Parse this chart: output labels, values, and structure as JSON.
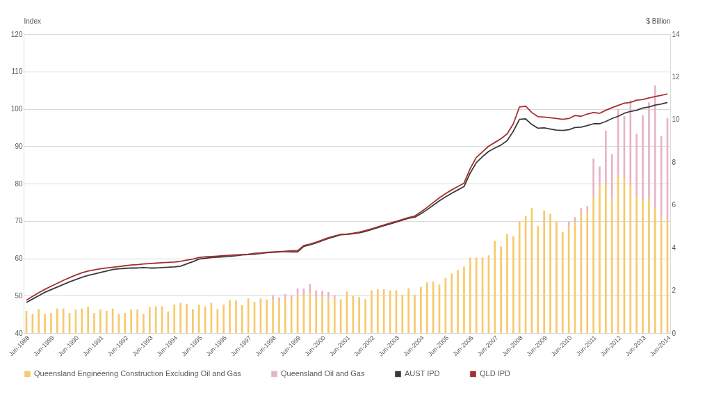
{
  "chart_data": {
    "type": "bar",
    "ylabel": "Index",
    "y2label": "$ Billion",
    "stacked": true,
    "grid": "y",
    "legend": "bottom",
    "ylim": [
      40,
      120
    ],
    "yticks": [
      40,
      50,
      60,
      70,
      80,
      90,
      100,
      110,
      120
    ],
    "y2lim": [
      0,
      14
    ],
    "y2ticks": [
      0,
      2,
      4,
      6,
      8,
      10,
      12,
      14
    ],
    "categories": [
      "Jun-1988",
      null,
      null,
      null,
      "Jun-1989",
      null,
      null,
      null,
      "Jun-1990",
      null,
      null,
      null,
      "Jun-1991",
      null,
      null,
      null,
      "Jun-1992",
      null,
      null,
      null,
      "Jun-1993",
      null,
      null,
      null,
      "Jun-1994",
      null,
      null,
      null,
      "Jun-1995",
      null,
      null,
      null,
      "Jun-1996",
      null,
      null,
      null,
      "Jun-1997",
      null,
      null,
      null,
      "Jun-1998",
      null,
      null,
      null,
      "Jun-1999",
      null,
      null,
      null,
      "Jun-2000",
      null,
      null,
      null,
      "Jun-2001",
      null,
      null,
      null,
      "Jun-2002",
      null,
      null,
      null,
      "Jun-2003",
      null,
      null,
      null,
      "Jun-2004",
      null,
      null,
      null,
      "Jun-2005",
      null,
      null,
      null,
      "Jun-2006",
      null,
      null,
      null,
      "Jun-2007",
      null,
      null,
      null,
      "Jun-2008",
      null,
      null,
      null,
      "Jun-2009",
      null,
      null,
      null,
      "Jun-2010",
      null,
      null,
      null,
      "Jun-2011",
      null,
      null,
      null,
      "Jun-2012",
      null,
      null,
      null,
      "Jun-2013",
      null,
      null,
      null,
      "Jun-2014"
    ],
    "series": [
      {
        "name": "Queensland Engineering Construction Excluding Oil and Gas",
        "axis": "y2",
        "color": "#f7c96b",
        "values": [
          1.04,
          0.89,
          1.12,
          0.89,
          0.94,
          1.15,
          1.15,
          0.94,
          1.1,
          1.15,
          1.22,
          0.94,
          1.1,
          1.04,
          1.15,
          0.89,
          0.94,
          1.1,
          1.1,
          0.89,
          1.22,
          1.25,
          1.25,
          1.01,
          1.33,
          1.41,
          1.36,
          1.12,
          1.33,
          1.25,
          1.41,
          1.12,
          1.33,
          1.54,
          1.52,
          1.31,
          1.62,
          1.46,
          1.62,
          1.57,
          1.55,
          1.5,
          1.6,
          1.6,
          1.8,
          1.75,
          1.85,
          1.7,
          1.7,
          1.65,
          1.6,
          1.58,
          1.95,
          1.74,
          1.69,
          1.58,
          2.0,
          2.05,
          2.05,
          2.0,
          2.0,
          1.79,
          2.1,
          1.79,
          2.16,
          2.37,
          2.42,
          2.27,
          2.58,
          2.79,
          2.95,
          3.11,
          3.53,
          3.53,
          3.53,
          3.64,
          4.32,
          4.06,
          4.64,
          4.53,
          5.22,
          5.48,
          5.85,
          5.01,
          5.74,
          5.58,
          5.22,
          4.74,
          5.0,
          5.2,
          5.6,
          5.7,
          6.38,
          6.9,
          7.0,
          6.27,
          7.38,
          7.22,
          6.9,
          6.38,
          6.22,
          6.32,
          5.85,
          5.43,
          5.32
        ]
      },
      {
        "name": "Queensland Oil and Gas",
        "axis": "y2",
        "color": "#e8b3c6",
        "values": [
          null,
          null,
          null,
          null,
          null,
          null,
          null,
          null,
          null,
          null,
          null,
          null,
          null,
          null,
          null,
          null,
          null,
          null,
          null,
          null,
          null,
          null,
          null,
          null,
          null,
          null,
          null,
          null,
          null,
          null,
          null,
          null,
          null,
          null,
          null,
          null,
          null,
          null,
          null,
          null,
          0.23,
          0.17,
          0.23,
          0.18,
          0.29,
          0.34,
          0.45,
          0.29,
          0.29,
          0.28,
          0.18,
          null,
          null,
          null,
          null,
          null,
          null,
          null,
          null,
          null,
          null,
          null,
          null,
          null,
          null,
          null,
          null,
          null,
          null,
          null,
          null,
          null,
          null,
          null,
          null,
          null,
          null,
          null,
          null,
          null,
          null,
          null,
          null,
          null,
          null,
          null,
          null,
          null,
          0.22,
          0.23,
          0.25,
          0.25,
          1.79,
          0.9,
          2.48,
          2.11,
          3.12,
          2.95,
          4.0,
          2.95,
          3.98,
          4.48,
          5.75,
          3.79,
          4.74
        ]
      },
      {
        "name": "AUST IPD",
        "type": "line",
        "axis": "y",
        "color": "#3a3a3a",
        "values": [
          48.2,
          49.1,
          50.0,
          50.9,
          51.6,
          52.3,
          53.0,
          53.7,
          54.3,
          54.9,
          55.4,
          55.8,
          56.2,
          56.6,
          57.0,
          57.2,
          57.3,
          57.4,
          57.4,
          57.5,
          57.4,
          57.4,
          57.5,
          57.6,
          57.7,
          57.9,
          58.5,
          59.1,
          59.8,
          60.0,
          60.2,
          60.3,
          60.4,
          60.5,
          60.7,
          60.9,
          61.0,
          61.1,
          61.3,
          61.5,
          61.6,
          61.7,
          61.8,
          61.7,
          61.7,
          63.2,
          63.6,
          64.1,
          64.7,
          65.3,
          65.8,
          66.3,
          66.4,
          66.6,
          66.8,
          67.2,
          67.7,
          68.2,
          68.7,
          69.2,
          69.7,
          70.2,
          70.7,
          71.0,
          71.9,
          73.0,
          74.2,
          75.4,
          76.4,
          77.4,
          78.3,
          79.2,
          82.8,
          85.6,
          87.2,
          88.6,
          89.5,
          90.3,
          91.5,
          94.0,
          97.2,
          97.3,
          95.8,
          94.8,
          94.9,
          94.6,
          94.3,
          94.2,
          94.4,
          95.0,
          95.1,
          95.5,
          96.0,
          96.0,
          96.6,
          97.4,
          98.0,
          98.8,
          99.3,
          99.6,
          100.2,
          100.5,
          101.0,
          101.3,
          101.7
        ]
      },
      {
        "name": "QLD IPD",
        "type": "line",
        "axis": "y",
        "color": "#a3302e",
        "values": [
          48.8,
          49.8,
          50.8,
          51.7,
          52.5,
          53.3,
          54.1,
          54.8,
          55.5,
          56.1,
          56.6,
          56.9,
          57.2,
          57.4,
          57.6,
          57.8,
          58.0,
          58.2,
          58.3,
          58.5,
          58.6,
          58.7,
          58.8,
          58.9,
          59.0,
          59.2,
          59.5,
          59.8,
          60.2,
          60.4,
          60.5,
          60.6,
          60.7,
          60.8,
          60.9,
          61.0,
          61.1,
          61.3,
          61.4,
          61.6,
          61.7,
          61.8,
          61.9,
          62.0,
          62.0,
          63.4,
          63.8,
          64.3,
          64.9,
          65.5,
          66.0,
          66.4,
          66.5,
          66.7,
          67.0,
          67.4,
          67.9,
          68.4,
          68.9,
          69.4,
          69.9,
          70.4,
          70.9,
          71.3,
          72.4,
          73.6,
          74.9,
          76.2,
          77.3,
          78.3,
          79.2,
          80.1,
          84.0,
          87.0,
          88.5,
          90.0,
          91.0,
          92.0,
          93.3,
          96.0,
          100.5,
          100.7,
          99.0,
          97.9,
          97.8,
          97.6,
          97.4,
          97.2,
          97.4,
          98.2,
          98.0,
          98.6,
          99.0,
          98.8,
          99.6,
          100.3,
          100.9,
          101.5,
          101.7,
          102.3,
          102.5,
          102.9,
          103.3,
          103.6,
          104.0
        ]
      }
    ]
  }
}
